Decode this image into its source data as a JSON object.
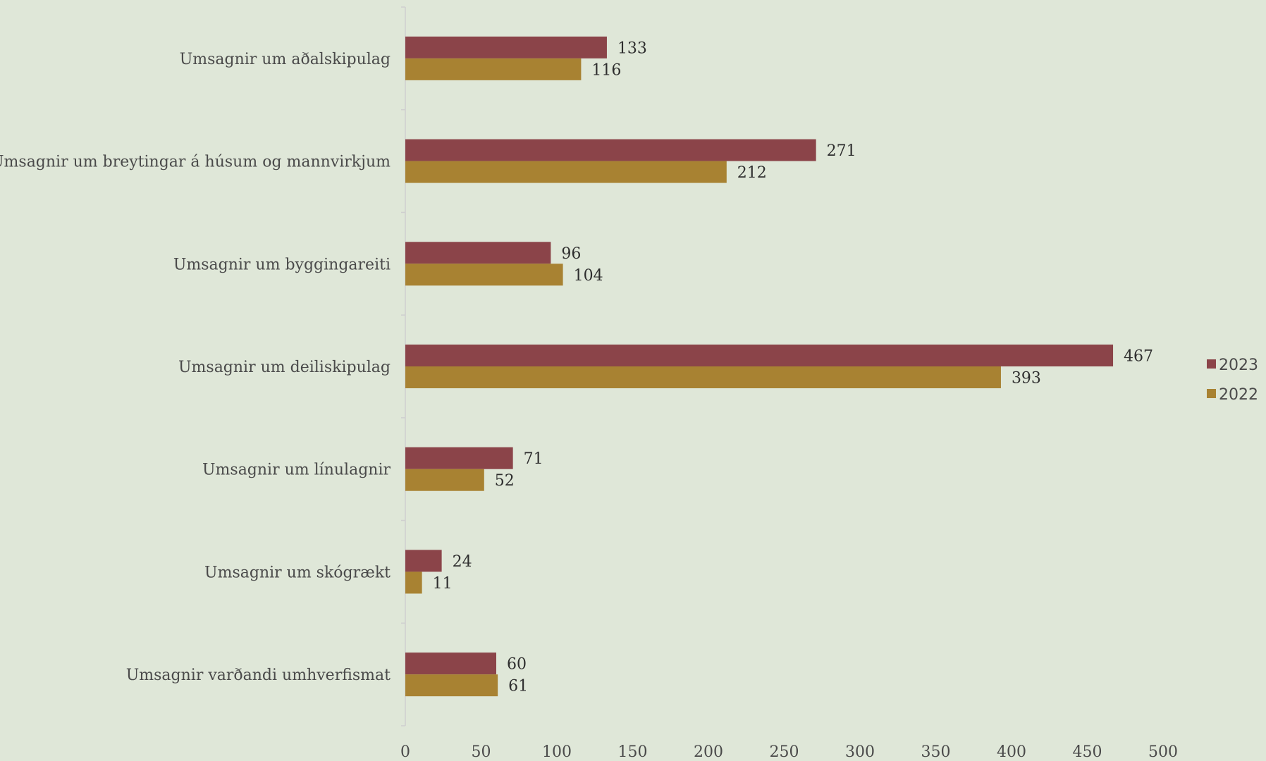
{
  "chart_data": {
    "type": "bar",
    "orientation": "horizontal",
    "categories": [
      "Umsagnir um aðalskipulag",
      "Umsagnir um breytingar á húsum og mannvirkjum",
      "Umsagnir um byggingareiti",
      "Umsagnir um deiliskipulag",
      "Umsagnir um línulagnir",
      "Umsagnir um skógrækt",
      "Umsagnir varðandi umhverfismat"
    ],
    "series": [
      {
        "name": "2023",
        "color": "#8b4449",
        "values": [
          133,
          271,
          96,
          467,
          71,
          24,
          60
        ]
      },
      {
        "name": "2022",
        "color": "#a88232",
        "values": [
          116,
          212,
          104,
          393,
          52,
          11,
          61
        ]
      }
    ],
    "xlim": [
      0,
      500
    ],
    "x_ticks": [
      "0",
      "50",
      "100",
      "150",
      "200",
      "250",
      "300",
      "350",
      "400",
      "450",
      "500"
    ],
    "grid": false,
    "legend_position": "right",
    "title": "",
    "xlabel": "",
    "ylabel": ""
  }
}
